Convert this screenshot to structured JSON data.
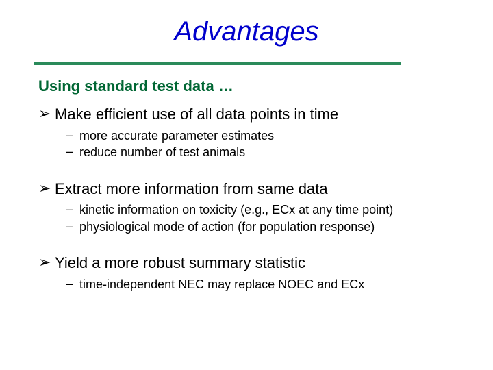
{
  "title": "Advantages",
  "lead": "Using standard test data …",
  "colors": {
    "title": "#0000cc",
    "lead": "#006633",
    "divider": "#2a8a5a",
    "body": "#000000",
    "background": "#ffffff"
  },
  "fonts": {
    "title_size_pt": 30,
    "title_italic": true,
    "lead_size_pt": 16,
    "lead_bold": true,
    "l1_size_pt": 16,
    "l2_size_pt": 13
  },
  "groups": [
    {
      "main": "Make efficient use of all data points in time",
      "subs": [
        "more accurate parameter estimates",
        "reduce number of test animals"
      ]
    },
    {
      "main": "Extract more information from same data",
      "subs": [
        "kinetic information on toxicity (e.g., ECx at any time point)",
        "physiological mode of action (for population response)"
      ]
    },
    {
      "main": "Yield a more robust summary statistic",
      "subs": [
        "time-independent NEC may replace NOEC and ECx"
      ]
    }
  ],
  "markers": {
    "l1": "➢",
    "l2": "–"
  }
}
